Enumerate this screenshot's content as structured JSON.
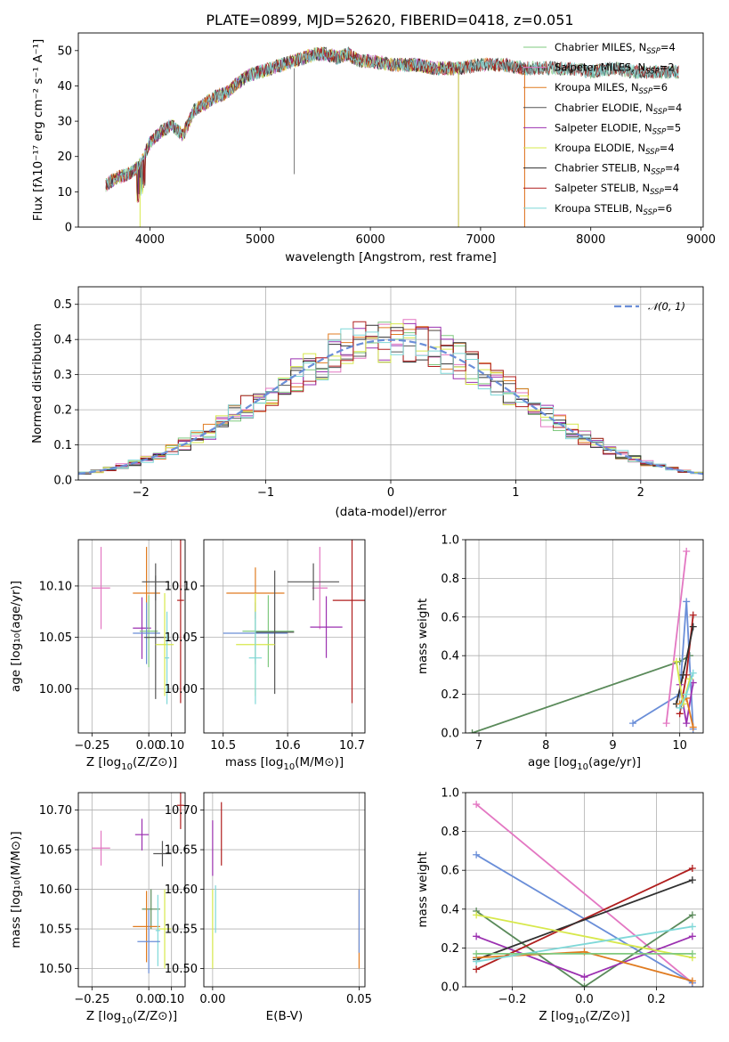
{
  "figure": {
    "title": "PLATE=0899, MJD=52620, FIBERID=0418, z=0.051"
  },
  "palette": {
    "Chabrier MILES": "#7fc97f",
    "Salpeter MILES": "#e377c2",
    "Kroupa MILES": "#e07b20",
    "Chabrier ELODIE": "#555555",
    "Salpeter ELODIE": "#9b30b0",
    "Kroupa ELODIE": "#d7e84b",
    "Chabrier STELIB": "#303030",
    "Salpeter STELIB": "#b01e1e",
    "Kroupa STELIB": "#7fd8d8",
    "Chabrier STELIB line": "#5a8a5a",
    "Blue": "#6a8ed8",
    "Normal": "#6a8ed8"
  },
  "chart_data": [
    {
      "id": "spectrum",
      "type": "line",
      "title": "PLATE=0899, MJD=52620, FIBERID=0418, z=0.051",
      "xlabel": "wavelength [Angstrom, rest frame]",
      "ylabel": "Flux [fλ10⁻¹⁷ erg cm⁻² s⁻¹ A⁻¹]",
      "xlim": [
        3350,
        9020
      ],
      "ylim": [
        0,
        55
      ],
      "xticks": [
        4000,
        5000,
        6000,
        7000,
        8000,
        9000
      ],
      "yticks": [
        0,
        10,
        20,
        30,
        40,
        50
      ],
      "legend_position": "top-right",
      "continuum": {
        "x": [
          3600,
          3700,
          3800,
          3900,
          4000,
          4100,
          4200,
          4300,
          4400,
          4500,
          4600,
          4700,
          4800,
          4900,
          5000,
          5100,
          5200,
          5300,
          5400,
          5500,
          5600,
          5700,
          5800,
          5900,
          6000,
          6200,
          6400,
          6600,
          6800,
          7000,
          7200,
          7400,
          7600,
          7800,
          8000,
          8200,
          8400,
          8600,
          8800
        ],
        "y": [
          12,
          14,
          15,
          17,
          24,
          27,
          29,
          26,
          33,
          35,
          37,
          38,
          41,
          43,
          44,
          45,
          46,
          47,
          48,
          49,
          49,
          48,
          49,
          47,
          47,
          46,
          46,
          45,
          45,
          46,
          46,
          45,
          45,
          45,
          44,
          45,
          44,
          44,
          44
        ]
      },
      "series": [
        {
          "name": "Chabrier MILES, N_SSP=4",
          "label_main": "Chabrier MILES, N",
          "label_sub": "SSP",
          "label_tail": "=4",
          "color": "#7fc97f",
          "xmax": 8800
        },
        {
          "name": "Salpeter MILES, N_SSP=2",
          "label_main": "Salpeter MILES, N",
          "label_sub": "SSP",
          "label_tail": "=2",
          "color": "#e377c2",
          "xmax": 7400
        },
        {
          "name": "Kroupa MILES, N_SSP=6",
          "label_main": "Kroupa MILES, N",
          "label_sub": "SSP",
          "label_tail": "=6",
          "color": "#e07b20",
          "xmax": 7400
        },
        {
          "name": "Chabrier ELODIE, N_SSP=4",
          "label_main": "Chabrier ELODIE, N",
          "label_sub": "SSP",
          "label_tail": "=4",
          "color": "#555555",
          "xmax": 8800
        },
        {
          "name": "Salpeter ELODIE, N_SSP=5",
          "label_main": "Salpeter ELODIE, N",
          "label_sub": "SSP",
          "label_tail": "=5",
          "color": "#9b30b0",
          "xmax": 6800
        },
        {
          "name": "Kroupa ELODIE, N_SSP=4",
          "label_main": "Kroupa ELODIE, N",
          "label_sub": "SSP",
          "label_tail": "=4",
          "color": "#d7e84b",
          "xmax": 6800
        },
        {
          "name": "Chabrier STELIB, N_SSP=4",
          "label_main": "Chabrier STELIB, N",
          "label_sub": "SSP",
          "label_tail": "=4",
          "color": "#303030",
          "xmax": 8800
        },
        {
          "name": "Salpeter STELIB, N_SSP=4",
          "label_main": "Salpeter STELIB, N",
          "label_sub": "SSP",
          "label_tail": "=4",
          "color": "#b01e1e",
          "xmax": 8800
        },
        {
          "name": "Kroupa STELIB, N_SSP=6",
          "label_main": "Kroupa STELIB, N",
          "label_sub": "SSP",
          "label_tail": "=6",
          "color": "#7fd8d8",
          "xmax": 8800
        }
      ]
    },
    {
      "id": "residuals",
      "type": "histogram",
      "xlabel": "(data-model)/error",
      "ylabel": "Normed distribution",
      "xlim": [
        -2.5,
        2.5
      ],
      "ylim": [
        0,
        0.55
      ],
      "xticks": [
        -2,
        -1,
        0,
        1,
        2
      ],
      "yticks": [
        0.0,
        0.1,
        0.2,
        0.3,
        0.4,
        0.5
      ],
      "grid": true,
      "legend_position": "top-right",
      "normal_label": "𝒩(0, 1)",
      "bin_width": 0.1,
      "bin_start": -2.5
    },
    {
      "id": "z_age",
      "type": "scatter",
      "xlabel_main": "Z [log",
      "xlabel_sub": "10",
      "xlabel_tail": "(Z/Z⊙)]",
      "ylabel": "age  [log₁₀(age/yr)]",
      "xlim": [
        -0.31,
        0.16
      ],
      "ylim": [
        9.957,
        10.145
      ],
      "xticks": [
        -0.25,
        0.0,
        0.1
      ],
      "yticks": [
        10.0,
        10.05,
        10.1
      ],
      "points": [
        {
          "x": -0.21,
          "y": 10.098,
          "xerr": 0.04,
          "yerr": 0.04,
          "color": "#e377c2"
        },
        {
          "x": -0.01,
          "y": 10.093,
          "xerr": 0.06,
          "yerr": 0.045,
          "color": "#e07b20"
        },
        {
          "x": 0.03,
          "y": 10.104,
          "xerr": 0.06,
          "yerr": 0.018,
          "color": "#555555"
        },
        {
          "x": 0.14,
          "y": 10.086,
          "xerr": 0.015,
          "yerr": 0.1,
          "color": "#b01e1e"
        },
        {
          "x": -0.03,
          "y": 10.059,
          "xerr": 0.04,
          "yerr": 0.03,
          "color": "#9b30b0"
        },
        {
          "x": 0.0,
          "y": 10.056,
          "xerr": 0.04,
          "yerr": 0.035,
          "color": "#7fc97f"
        },
        {
          "x": -0.01,
          "y": 10.054,
          "xerr": 0.06,
          "yerr": 0.03,
          "color": "#6a8ed8"
        },
        {
          "x": 0.03,
          "y": 10.05,
          "xerr": 0.05,
          "yerr": 0.06,
          "color": "#555555"
        },
        {
          "x": 0.07,
          "y": 10.043,
          "xerr": 0.04,
          "yerr": 0.05,
          "color": "#d7e84b"
        },
        {
          "x": 0.08,
          "y": 10.03,
          "xerr": 0.01,
          "yerr": 0.045,
          "color": "#7fd8d8"
        }
      ]
    },
    {
      "id": "mass_age",
      "type": "scatter",
      "xlabel_main": "mass [log",
      "xlabel_sub": "10",
      "xlabel_tail": "(M/M⊙)]",
      "xlim": [
        10.47,
        10.72
      ],
      "ylim": [
        9.957,
        10.145
      ],
      "xticks": [
        10.5,
        10.6,
        10.7
      ],
      "yticks": [
        10.0,
        10.05,
        10.1
      ],
      "points": [
        {
          "x": 10.65,
          "y": 10.098,
          "xerr": 0.012,
          "yerr": 0.04,
          "color": "#e377c2"
        },
        {
          "x": 10.55,
          "y": 10.093,
          "xerr": 0.045,
          "yerr": 0.025,
          "color": "#e07b20"
        },
        {
          "x": 10.64,
          "y": 10.104,
          "xerr": 0.04,
          "yerr": 0.018,
          "color": "#555555"
        },
        {
          "x": 10.7,
          "y": 10.086,
          "xerr": 0.03,
          "yerr": 0.1,
          "color": "#b01e1e"
        },
        {
          "x": 10.66,
          "y": 10.06,
          "xerr": 0.025,
          "yerr": 0.03,
          "color": "#9b30b0"
        },
        {
          "x": 10.57,
          "y": 10.056,
          "xerr": 0.04,
          "yerr": 0.035,
          "color": "#7fc97f"
        },
        {
          "x": 10.55,
          "y": 10.054,
          "xerr": 0.05,
          "yerr": 0.03,
          "color": "#6a8ed8"
        },
        {
          "x": 10.58,
          "y": 10.055,
          "xerr": 0.03,
          "yerr": 0.06,
          "color": "#555555"
        },
        {
          "x": 10.55,
          "y": 10.043,
          "xerr": 0.03,
          "yerr": 0.05,
          "color": "#d7e84b"
        },
        {
          "x": 10.55,
          "y": 10.03,
          "xerr": 0.01,
          "yerr": 0.045,
          "color": "#7fd8d8"
        }
      ]
    },
    {
      "id": "age_weight",
      "type": "line",
      "xlabel_main": "age  [log",
      "xlabel_sub": "10",
      "xlabel_tail": "(age/yr)]",
      "ylabel": "mass weight",
      "xlim": [
        6.8,
        10.35
      ],
      "ylim": [
        0.0,
        1.0
      ],
      "xticks": [
        7,
        8,
        9,
        10
      ],
      "yticks": [
        0.0,
        0.2,
        0.4,
        0.6,
        0.8,
        1.0
      ],
      "grid": true,
      "series": [
        {
          "color": "#5a8a5a",
          "x": [
            6.9,
            10.0,
            10.15
          ],
          "y": [
            0.0,
            0.37,
            0.4
          ]
        },
        {
          "color": "#6a8ed8",
          "x": [
            9.3,
            10.0,
            10.1,
            10.2
          ],
          "y": [
            0.05,
            0.2,
            0.68,
            0.02
          ]
        },
        {
          "color": "#e377c2",
          "x": [
            9.8,
            10.1
          ],
          "y": [
            0.05,
            0.94
          ]
        },
        {
          "color": "#b01e1e",
          "x": [
            10.0,
            10.1,
            10.2
          ],
          "y": [
            0.1,
            0.3,
            0.61
          ]
        },
        {
          "color": "#303030",
          "x": [
            9.95,
            10.05,
            10.2
          ],
          "y": [
            0.15,
            0.3,
            0.55
          ]
        },
        {
          "color": "#9b30b0",
          "x": [
            10.0,
            10.1,
            10.2
          ],
          "y": [
            0.25,
            0.05,
            0.26
          ]
        },
        {
          "color": "#e07b20",
          "x": [
            10.0,
            10.1,
            10.2
          ],
          "y": [
            0.15,
            0.18,
            0.03
          ]
        },
        {
          "color": "#d7e84b",
          "x": [
            9.95,
            10.05,
            10.15
          ],
          "y": [
            0.37,
            0.15,
            0.28
          ]
        },
        {
          "color": "#7fd8d8",
          "x": [
            10.0,
            10.1,
            10.2
          ],
          "y": [
            0.13,
            0.2,
            0.31
          ]
        }
      ]
    },
    {
      "id": "z_mass",
      "type": "scatter",
      "xlabel_main": "Z [log",
      "xlabel_sub": "10",
      "xlabel_tail": "(Z/Z⊙)]",
      "ylabel": "mass [log₁₀(M/M⊙)]",
      "xlim": [
        -0.31,
        0.16
      ],
      "ylim": [
        10.477,
        10.722
      ],
      "xticks": [
        -0.25,
        0.0,
        0.1
      ],
      "yticks": [
        10.5,
        10.55,
        10.6,
        10.65,
        10.7
      ],
      "points": [
        {
          "x": -0.21,
          "y": 10.652,
          "xerr": 0.04,
          "yerr": 0.022,
          "color": "#e377c2"
        },
        {
          "x": -0.03,
          "y": 10.669,
          "xerr": 0.03,
          "yerr": 0.02,
          "color": "#9b30b0"
        },
        {
          "x": 0.14,
          "y": 10.706,
          "xerr": 0.015,
          "yerr": 0.03,
          "color": "#b01e1e"
        },
        {
          "x": 0.06,
          "y": 10.645,
          "xerr": 0.04,
          "yerr": 0.016,
          "color": "#555555"
        },
        {
          "x": 0.01,
          "y": 10.575,
          "xerr": 0.04,
          "yerr": 0.025,
          "color": "#5a8a5a"
        },
        {
          "x": -0.01,
          "y": 10.553,
          "xerr": 0.06,
          "yerr": 0.045,
          "color": "#e07b20"
        },
        {
          "x": 0.07,
          "y": 10.55,
          "xerr": 0.03,
          "yerr": 0.05,
          "color": "#d7e84b"
        },
        {
          "x": 0.04,
          "y": 10.548,
          "xerr": 0.01,
          "yerr": 0.045,
          "color": "#7fd8d8"
        },
        {
          "x": 0.0,
          "y": 10.534,
          "xerr": 0.05,
          "yerr": 0.04,
          "color": "#6a8ed8"
        }
      ]
    },
    {
      "id": "ebv_mass",
      "type": "scatter",
      "xlabel": "E(B-V)",
      "xlim": [
        -0.003,
        0.052
      ],
      "ylim": [
        10.477,
        10.722
      ],
      "xticks": [
        0.0,
        0.05
      ],
      "yticks": [
        10.5,
        10.55,
        10.6,
        10.65,
        10.7
      ],
      "points": [
        {
          "x": 0.0,
          "y": 10.652,
          "yerr": 0.035,
          "color": "#9b30b0"
        },
        {
          "x": 0.003,
          "y": 10.67,
          "yerr": 0.04,
          "color": "#b01e1e"
        },
        {
          "x": 0.001,
          "y": 10.575,
          "yerr": 0.03,
          "color": "#7fd8d8"
        },
        {
          "x": 0.0,
          "y": 10.55,
          "yerr": 0.05,
          "color": "#d7e84b"
        },
        {
          "x": 0.05,
          "y": 10.55,
          "yerr": 0.05,
          "color": "#e07b20"
        },
        {
          "x": 0.05,
          "y": 10.56,
          "yerr": 0.04,
          "color": "#6a8ed8"
        }
      ]
    },
    {
      "id": "z_weight",
      "type": "line",
      "xlabel_main": "Z [log",
      "xlabel_sub": "10",
      "xlabel_tail": "(Z/Z⊙)]",
      "ylabel": "mass weight",
      "xlim": [
        -0.33,
        0.33
      ],
      "ylim": [
        0.0,
        1.0
      ],
      "xticks": [
        -0.2,
        0.0,
        0.2
      ],
      "yticks": [
        0.0,
        0.2,
        0.4,
        0.6,
        0.8,
        1.0
      ],
      "grid": true,
      "series": [
        {
          "color": "#e377c2",
          "x": [
            -0.3,
            0.3
          ],
          "y": [
            0.94,
            0.02
          ]
        },
        {
          "color": "#6a8ed8",
          "x": [
            -0.3,
            0.3
          ],
          "y": [
            0.68,
            0.02
          ]
        },
        {
          "color": "#5a8a5a",
          "x": [
            -0.3,
            0.0,
            0.3
          ],
          "y": [
            0.39,
            0.0,
            0.37
          ]
        },
        {
          "color": "#9b30b0",
          "x": [
            -0.3,
            0.0,
            0.3
          ],
          "y": [
            0.26,
            0.05,
            0.26
          ]
        },
        {
          "color": "#b01e1e",
          "x": [
            -0.3,
            0.3
          ],
          "y": [
            0.09,
            0.61
          ]
        },
        {
          "color": "#303030",
          "x": [
            -0.3,
            0.3
          ],
          "y": [
            0.14,
            0.55
          ]
        },
        {
          "color": "#e07b20",
          "x": [
            -0.3,
            0.0,
            0.3
          ],
          "y": [
            0.15,
            0.18,
            0.03
          ]
        },
        {
          "color": "#d7e84b",
          "x": [
            -0.3,
            0.3
          ],
          "y": [
            0.37,
            0.15
          ]
        },
        {
          "color": "#7fd8d8",
          "x": [
            -0.3,
            0.3
          ],
          "y": [
            0.13,
            0.31
          ]
        },
        {
          "color": "#7fc97f",
          "x": [
            -0.3,
            0.3
          ],
          "y": [
            0.17,
            0.17
          ]
        }
      ]
    }
  ]
}
